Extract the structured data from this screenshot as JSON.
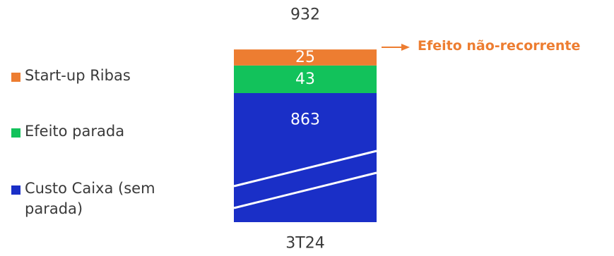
{
  "chart_data": {
    "type": "bar",
    "stacked": true,
    "categories": [
      "3T24"
    ],
    "series": [
      {
        "name": "Custo Caixa (sem parada)",
        "values": [
          863
        ],
        "color": "#1a2fc7"
      },
      {
        "name": "Efeito parada",
        "values": [
          43
        ],
        "color": "#12c25b"
      },
      {
        "name": "Start-up Ribas",
        "values": [
          25
        ],
        "color": "#ed7d31"
      }
    ],
    "total_label": "932",
    "axis_break": true,
    "legend_position": "left",
    "annotation": {
      "text": "Efeito não-recorrente",
      "target_series": "Start-up Ribas",
      "color": "#ed7d31"
    }
  }
}
